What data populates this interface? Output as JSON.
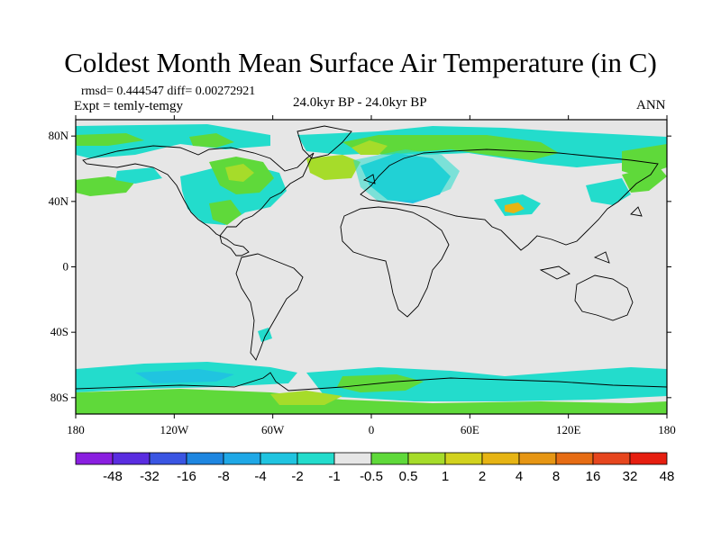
{
  "header": {
    "title": "Coldest Month Mean Surface Air Temperature (in C)",
    "stats": "rmsd= 0.444547 diff= 0.00272921",
    "expt": "Expt = temly-temgy",
    "subtitle": "24.0kyr BP - 24.0kyr BP",
    "season": "ANN"
  },
  "map": {
    "background_color": "#e6e6e6",
    "lat_ticks": [
      {
        "lat": 80,
        "label": "80N"
      },
      {
        "lat": 40,
        "label": "40N"
      },
      {
        "lat": 0,
        "label": "0"
      },
      {
        "lat": -40,
        "label": "40S"
      },
      {
        "lat": -80,
        "label": "80S"
      }
    ],
    "lon_ticks": [
      {
        "lon": -180,
        "label": "180"
      },
      {
        "lon": -120,
        "label": "120W"
      },
      {
        "lon": -60,
        "label": "60W"
      },
      {
        "lon": 0,
        "label": "0"
      },
      {
        "lon": 60,
        "label": "60E"
      },
      {
        "lon": 120,
        "label": "120E"
      },
      {
        "lon": 180,
        "label": "180"
      }
    ]
  },
  "colorbar": {
    "colors": [
      "#8a1fe0",
      "#5a2de0",
      "#3a55e2",
      "#1e86e0",
      "#1fa8e6",
      "#20c4e0",
      "#23dccc",
      "#e6e6e6",
      "#5fd93a",
      "#a6dc2a",
      "#d2d21e",
      "#e6b414",
      "#e69614",
      "#e66c14",
      "#e6461e",
      "#e61e10"
    ],
    "labels": [
      "-48",
      "-32",
      "-16",
      "-8",
      "-4",
      "-2",
      "-1",
      "-0.5",
      "0.5",
      "1",
      "2",
      "4",
      "8",
      "16",
      "32",
      "48"
    ]
  }
}
